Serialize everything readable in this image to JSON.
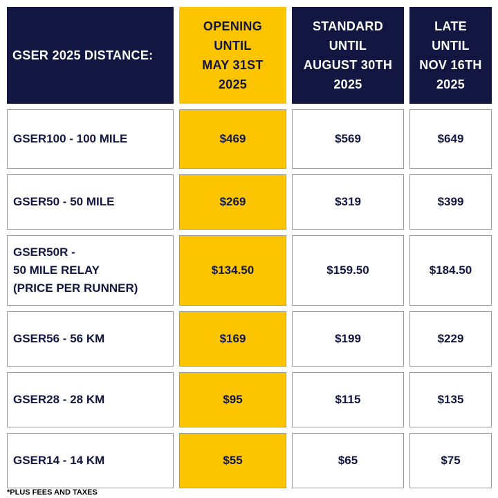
{
  "header": {
    "distance": "GSER 2025 DISTANCE:",
    "opening": "OPENING\nUNTIL\nMAY 31ST\n2025",
    "standard": "STANDARD\nUNTIL\nAUGUST 30TH\n2025",
    "late": "LATE\nUNTIL\nNOV 16TH\n2025"
  },
  "rows": [
    {
      "label": "GSER100 - 100 MILE",
      "opening": "$469",
      "standard": "$569",
      "late": "$649"
    },
    {
      "label": "GSER50 - 50 MILE",
      "opening": "$269",
      "standard": "$319",
      "late": "$399"
    },
    {
      "label": "GSER50R -\n50 MILE RELAY\n(PRICE PER RUNNER)",
      "opening": "$134.50",
      "standard": "$159.50",
      "late": "$184.50"
    },
    {
      "label": "GSER56 - 56 KM",
      "opening": "$169",
      "standard": "$199",
      "late": "$229"
    },
    {
      "label": "GSER28 - 28 KM",
      "opening": "$95",
      "standard": "$115",
      "late": "$135"
    },
    {
      "label": "GSER14 - 14 KM",
      "opening": "$55",
      "standard": "$65",
      "late": "$75"
    }
  ],
  "footnote": "*PLUS FEES AND TAXES",
  "colors": {
    "navy": "#131640",
    "yellow": "#fdc500"
  }
}
